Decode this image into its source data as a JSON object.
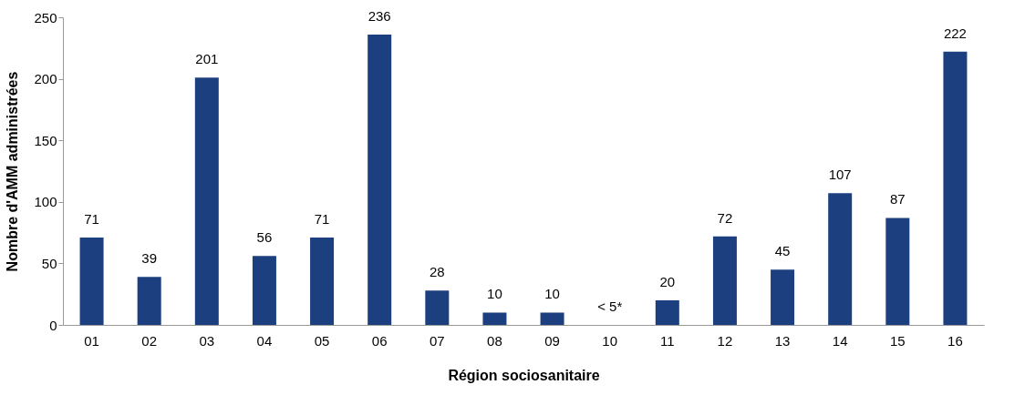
{
  "chart_data": {
    "type": "bar",
    "xlabel": "Région sociosanitaire",
    "ylabel": "Nombre d'AMM administrées",
    "categories": [
      "01",
      "02",
      "03",
      "04",
      "05",
      "06",
      "07",
      "08",
      "09",
      "10",
      "11",
      "12",
      "13",
      "14",
      "15",
      "16"
    ],
    "values": [
      71,
      39,
      201,
      56,
      71,
      236,
      28,
      10,
      10,
      null,
      20,
      72,
      45,
      107,
      87,
      222
    ],
    "value_labels": [
      "71",
      "39",
      "201",
      "56",
      "71",
      "236",
      "28",
      "10",
      "10",
      "< 5*",
      "20",
      "72",
      "45",
      "107",
      "87",
      "222"
    ],
    "color": "#1c3f80",
    "ylim": [
      0,
      250
    ],
    "yticks": [
      0,
      50,
      100,
      150,
      200,
      250
    ],
    "grid": false
  }
}
